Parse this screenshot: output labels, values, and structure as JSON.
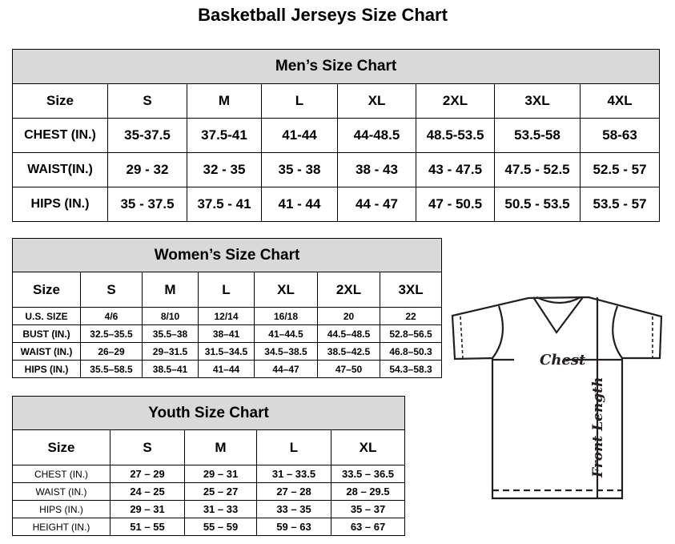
{
  "title": "Basketball Jerseys Size Chart",
  "men": {
    "title": "Men’s Size Chart",
    "header": [
      "Size",
      "S",
      "M",
      "L",
      "XL",
      "2XL",
      "3XL",
      "4XL"
    ],
    "rows": [
      [
        "CHEST (IN.)",
        "35-37.5",
        "37.5-41",
        "41-44",
        "44-48.5",
        "48.5-53.5",
        "53.5-58",
        "58-63"
      ],
      [
        "WAIST(IN.)",
        "29 - 32",
        "32 - 35",
        "35 - 38",
        "38 - 43",
        "43 - 47.5",
        "47.5 - 52.5",
        "52.5 - 57"
      ],
      [
        "HIPS (IN.)",
        "35 - 37.5",
        "37.5 - 41",
        "41 - 44",
        "44 - 47",
        "47 - 50.5",
        "50.5 - 53.5",
        "53.5 - 57"
      ]
    ]
  },
  "women": {
    "title": "Women’s Size Chart",
    "header": [
      "Size",
      "S",
      "M",
      "L",
      "XL",
      "2XL",
      "3XL"
    ],
    "rows": [
      [
        "U.S.  SIZE",
        "4/6",
        "8/10",
        "12/14",
        "16/18",
        "20",
        "22"
      ],
      [
        "BUST  (IN.)",
        "32.5–35.5",
        "35.5–38",
        "38–41",
        "41–44.5",
        "44.5–48.5",
        "52.8–56.5"
      ],
      [
        "WAIST  (IN.)",
        "26–29",
        "29–31.5",
        "31.5–34.5",
        "34.5–38.5",
        "38.5–42.5",
        "46.8–50.3"
      ],
      [
        "HIPS  (IN.)",
        "35.5–58.5",
        "38.5–41",
        "41–44",
        "44–47",
        "47–50",
        "54.3–58.3"
      ]
    ]
  },
  "youth": {
    "title": "Youth Size Chart",
    "header": [
      "Size",
      "S",
      "M",
      "L",
      "XL"
    ],
    "rows": [
      [
        "CHEST  (IN.)",
        "27  –  29",
        "29  –  31",
        "31  –  33.5",
        "33.5  –  36.5"
      ],
      [
        "WAIST  (IN.)",
        "24  –  25",
        "25  –  27",
        "27  –  28",
        "28  –  29.5"
      ],
      [
        "HIPS  (IN.)",
        "29  –  31",
        "31  –  33",
        "33  –  35",
        "35  –  37"
      ],
      [
        "HEIGHT  (IN.)",
        "51  –  55",
        "55  –  59",
        "59  –  63",
        "63  –  67"
      ]
    ]
  },
  "diagram": {
    "chest_label": "Chest",
    "length_label": "Front Length",
    "icon": "t-shirt-icon"
  }
}
